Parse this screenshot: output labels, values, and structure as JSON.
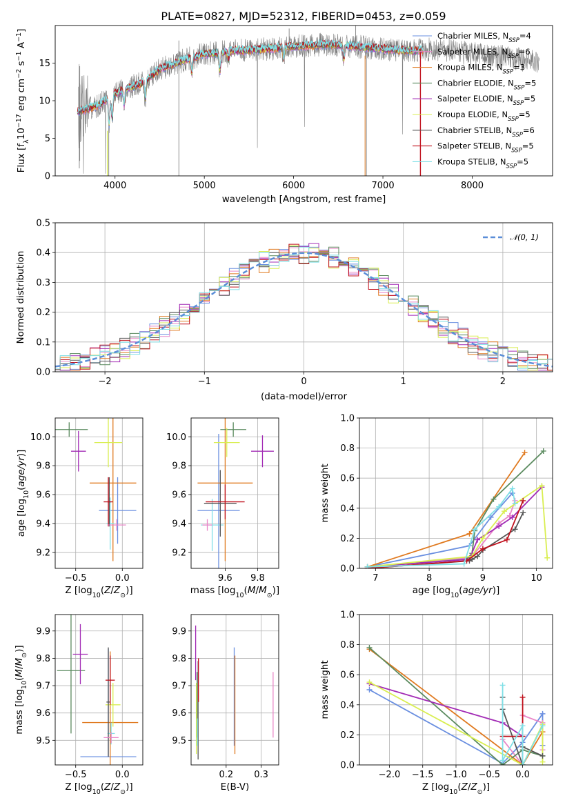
{
  "figure": {
    "title": "PLATE=0827, MJD=52312, FIBERID=0453, z=0.059"
  },
  "models": [
    {
      "name": "Chabrier MILES, N_SSP=4",
      "color": "#6a8fe0"
    },
    {
      "name": "Salpeter MILES, N_SSP=6",
      "color": "#e986c8"
    },
    {
      "name": "Kroupa MILES, N_SSP=3",
      "color": "#e07a20"
    },
    {
      "name": "Chabrier ELODIE, N_SSP=5",
      "color": "#5a8a5e"
    },
    {
      "name": "Salpeter ELODIE, N_SSP=5",
      "color": "#a22bb5"
    },
    {
      "name": "Kroupa ELODIE, N_SSP=5",
      "color": "#d9ee50"
    },
    {
      "name": "Chabrier STELIB, N_SSP=6",
      "color": "#555555"
    },
    {
      "name": "Salpeter STELIB, N_SSP=5",
      "color": "#c0101c"
    },
    {
      "name": "Kroupa STELIB, N_SSP=5",
      "color": "#7fdfe6"
    }
  ],
  "chart_data": [
    {
      "id": "spectrum",
      "type": "line",
      "xlabel": "wavelength [Angstrom, rest frame]",
      "ylabel": "Flux [f_λ10^-17 erg cm^-2 s^-1 A^-1]",
      "xlim": [
        3330,
        8900
      ],
      "ylim": [
        0,
        20
      ],
      "xticks": [
        4000,
        5000,
        6000,
        7000,
        8000
      ],
      "yticks": [
        0,
        5,
        10,
        15
      ],
      "data_color": "#808080",
      "legend_position": "right",
      "continuum_nodes": [
        [
          3600,
          8.6
        ],
        [
          3800,
          9.3
        ],
        [
          3950,
          10.6
        ],
        [
          4100,
          11.5
        ],
        [
          4300,
          12.3
        ],
        [
          4500,
          14.2
        ],
        [
          4800,
          15.5
        ],
        [
          5000,
          16.2
        ],
        [
          5300,
          16.6
        ],
        [
          5600,
          16.8
        ],
        [
          6000,
          17.2
        ],
        [
          6400,
          17.5
        ],
        [
          6700,
          17.2
        ],
        [
          7000,
          16.9
        ],
        [
          7300,
          16.6
        ],
        [
          7600,
          16.9
        ],
        [
          8000,
          16.2
        ],
        [
          8400,
          15.8
        ],
        [
          8700,
          15.2
        ]
      ],
      "model_range": [
        3580,
        7450
      ]
    },
    {
      "id": "residual_histogram",
      "type": "line",
      "xlabel": "(data-model)/error",
      "ylabel": "Normed distribution",
      "xlim": [
        -2.5,
        2.5
      ],
      "ylim": [
        0,
        0.5
      ],
      "xticks": [
        -2,
        -1,
        0,
        1,
        2
      ],
      "yticks": [
        0.0,
        0.1,
        0.2,
        0.3,
        0.4,
        0.5
      ],
      "gaussian_label": "𝒩(0, 1)",
      "gaussian_color": "#5b8ed8",
      "legend_position": "upper right",
      "bin_width": 0.1
    },
    {
      "id": "age_vs_Z",
      "type": "scatter",
      "xlabel": "Z [log10(Z/Z⊙)]",
      "ylabel": "age  [log10(age/yr)]",
      "xlim": [
        -0.72,
        0.22
      ],
      "ylim": [
        9.09,
        10.13
      ],
      "xticks": [
        -0.5,
        0.0
      ],
      "yticks": [
        9.2,
        9.4,
        9.6,
        9.8,
        10.0
      ],
      "errorbars": [
        {
          "model": 0,
          "x": -0.05,
          "xerr": 0.2,
          "y": 9.49,
          "yerr": 0.23
        },
        {
          "model": 2,
          "x": -0.1,
          "xerr": 0.25,
          "y": 9.68,
          "yerr": 0.54
        },
        {
          "model": 3,
          "x": -0.57,
          "xerr": 0.2,
          "y": 10.05,
          "yerr": 0.05
        },
        {
          "model": 4,
          "x": -0.47,
          "xerr": 0.08,
          "y": 9.9,
          "yerr": 0.14
        },
        {
          "model": 5,
          "x": -0.15,
          "xerr": 0.15,
          "y": 9.96,
          "yerr": 0.17
        },
        {
          "model": 8,
          "x": -0.13,
          "xerr": 0.04,
          "y": 9.4,
          "yerr": 0.18
        },
        {
          "model": 6,
          "x": -0.14,
          "xerr": 0.02,
          "y": 9.55,
          "yerr": 0.17
        },
        {
          "model": 7,
          "x": -0.15,
          "xerr": 0.05,
          "y": 9.55,
          "yerr": 0.17
        },
        {
          "model": 1,
          "x": -0.06,
          "xerr": 0.1,
          "y": 9.39,
          "yerr": 0.04
        }
      ]
    },
    {
      "id": "age_vs_mass",
      "type": "scatter",
      "xlabel": "mass [log10(M/M⊙)]",
      "ylabel": "",
      "xlim": [
        9.39,
        9.93
      ],
      "ylim": [
        9.09,
        10.13
      ],
      "xticks": [
        9.6,
        9.8
      ],
      "yticks": [
        9.2,
        9.4,
        9.6,
        9.8,
        10.0
      ],
      "errorbars": [
        {
          "model": 0,
          "x": 9.56,
          "xerr": 0.13,
          "y": 9.49,
          "yerr": 0.53
        },
        {
          "model": 2,
          "x": 9.6,
          "xerr": 0.17,
          "y": 9.68,
          "yerr": 0.54
        },
        {
          "model": 3,
          "x": 9.65,
          "xerr": 0.08,
          "y": 10.05,
          "yerr": 0.05
        },
        {
          "model": 4,
          "x": 9.83,
          "xerr": 0.07,
          "y": 9.9,
          "yerr": 0.11
        },
        {
          "model": 5,
          "x": 9.61,
          "xerr": 0.08,
          "y": 9.96,
          "yerr": 0.1
        },
        {
          "model": 8,
          "x": 9.52,
          "xerr": 0.07,
          "y": 9.39,
          "yerr": 0.18
        },
        {
          "model": 6,
          "x": 9.57,
          "xerr": 0.1,
          "y": 9.54,
          "yerr": 0.23
        },
        {
          "model": 7,
          "x": 9.6,
          "xerr": 0.12,
          "y": 9.55,
          "yerr": 0.12
        },
        {
          "model": 1,
          "x": 9.49,
          "xerr": 0.03,
          "y": 9.39,
          "yerr": 0.04
        }
      ]
    },
    {
      "id": "massweight_vs_age",
      "type": "line",
      "xlabel": "age  [log10(age/yr)]",
      "ylabel": "mass weight",
      "xlim": [
        6.7,
        10.3
      ],
      "ylim": [
        0,
        1
      ],
      "xticks": [
        7,
        8,
        9,
        10
      ],
      "yticks": [
        0.0,
        0.2,
        0.4,
        0.6,
        0.8,
        1.0
      ],
      "series": [
        {
          "model": 0,
          "x": [
            6.85,
            8.75,
            9.15,
            9.55
          ],
          "y": [
            0.01,
            0.15,
            0.34,
            0.5
          ]
        },
        {
          "model": 1,
          "x": [
            6.85,
            8.75,
            8.85,
            9.3,
            9.5,
            9.6
          ],
          "y": [
            0.01,
            0.07,
            0.1,
            0.3,
            0.35,
            0.45
          ]
        },
        {
          "model": 2,
          "x": [
            6.85,
            8.75,
            9.78
          ],
          "y": [
            0.01,
            0.23,
            0.77
          ]
        },
        {
          "model": 3,
          "x": [
            6.85,
            8.7,
            8.8,
            8.85,
            9.2,
            10.13
          ],
          "y": [
            0.01,
            0.06,
            0.1,
            0.25,
            0.46,
            0.78
          ]
        },
        {
          "model": 4,
          "x": [
            6.85,
            8.75,
            8.9,
            9.3,
            9.55,
            10.1
          ],
          "y": [
            0.01,
            0.06,
            0.19,
            0.28,
            0.34,
            0.54
          ]
        },
        {
          "model": 5,
          "x": [
            6.85,
            8.8,
            9.0,
            9.4,
            10.1,
            10.2
          ],
          "y": [
            0.01,
            0.08,
            0.2,
            0.38,
            0.55,
            0.07
          ]
        },
        {
          "model": 6,
          "x": [
            6.85,
            8.75,
            8.8,
            8.9,
            9.0,
            9.6,
            9.75
          ],
          "y": [
            0.0,
            0.05,
            0.06,
            0.08,
            0.12,
            0.26,
            0.37
          ]
        },
        {
          "model": 7,
          "x": [
            6.85,
            8.7,
            9.0,
            9.45,
            9.75
          ],
          "y": [
            0.0,
            0.05,
            0.13,
            0.19,
            0.45
          ]
        },
        {
          "model": 8,
          "x": [
            6.85,
            8.65,
            8.85,
            9.3,
            9.55,
            9.6
          ],
          "y": [
            0.01,
            0.03,
            0.26,
            0.41,
            0.53,
            0.43
          ]
        }
      ]
    },
    {
      "id": "mass_vs_Z",
      "type": "scatter",
      "xlabel": "Z [log10(Z/Z⊙)]",
      "ylabel": "mass [log10(M/M⊙)]",
      "xlim": [
        -0.72,
        0.22
      ],
      "ylim": [
        9.41,
        9.96
      ],
      "xticks": [
        -0.5,
        0.0
      ],
      "yticks": [
        9.5,
        9.6,
        9.7,
        9.8,
        9.9
      ],
      "errorbars": [
        {
          "model": 0,
          "x": -0.15,
          "xerr": 0.3,
          "y": 9.44,
          "yerr": 0.0,
          "yerr_up": 0.395
        },
        {
          "model": 2,
          "x": -0.13,
          "xerr": 0.3,
          "y": 9.565,
          "yerr": 0.26
        },
        {
          "model": 3,
          "x": -0.55,
          "xerr": 0.15,
          "y": 9.755,
          "yerr": 0.23
        },
        {
          "model": 4,
          "x": -0.45,
          "xerr": 0.08,
          "y": 9.815,
          "yerr": 0.11
        },
        {
          "model": 5,
          "x": -0.1,
          "xerr": 0.08,
          "y": 9.63,
          "yerr": 0.08
        },
        {
          "model": 8,
          "x": -0.12,
          "xerr": 0.04,
          "y": 9.525,
          "yerr": 0.04
        },
        {
          "model": 6,
          "x": -0.15,
          "xerr": 0.02,
          "y": 9.64,
          "yerr": 0.2
        },
        {
          "model": 7,
          "x": -0.13,
          "xerr": 0.05,
          "y": 9.72,
          "yerr": 0.09
        },
        {
          "model": 1,
          "x": -0.12,
          "xerr": 0.08,
          "y": 9.51,
          "yerr": 0.02
        }
      ]
    },
    {
      "id": "mass_vs_EBV",
      "type": "scatter",
      "xlabel": "E(B-V)",
      "ylabel": "",
      "xlim": [
        0.1,
        0.35
      ],
      "ylim": [
        9.41,
        9.96
      ],
      "xticks": [
        0.2,
        0.3
      ],
      "yticks": [
        9.5,
        9.6,
        9.7,
        9.8,
        9.9
      ],
      "errorbars": [
        {
          "model": 4,
          "x": 0.113,
          "y": 9.82,
          "yerr": 0.1
        },
        {
          "model": 3,
          "x": 0.117,
          "y": 9.63,
          "yerr": 0.12
        },
        {
          "model": 6,
          "x": 0.12,
          "y": 9.61,
          "yerr": 0.18
        },
        {
          "model": 7,
          "x": 0.121,
          "y": 9.72,
          "yerr": 0.08
        },
        {
          "model": 5,
          "x": 0.115,
          "y": 9.58,
          "yerr": 0.13
        },
        {
          "model": 8,
          "x": 0.118,
          "y": 9.53,
          "yerr": 0.05
        },
        {
          "model": 0,
          "x": 0.223,
          "y": 9.66,
          "yerr": 0.18
        },
        {
          "model": 2,
          "x": 0.225,
          "y": 9.63,
          "yerr": 0.18
        },
        {
          "model": 1,
          "x": 0.334,
          "y": 9.63,
          "yerr": 0.12
        }
      ]
    },
    {
      "id": "massweight_vs_Z",
      "type": "line",
      "xlabel": "Z [log10(Z/Z⊙)]",
      "ylabel": "mass weight",
      "xlim": [
        -2.45,
        0.45
      ],
      "ylim": [
        0,
        1
      ],
      "xticks": [
        -2.0,
        -1.5,
        -1.0,
        -0.5,
        0.0
      ],
      "yticks": [
        0.0,
        0.2,
        0.4,
        0.6,
        0.8,
        1.0
      ],
      "series": [
        {
          "model": 0,
          "x": [
            -2.3,
            -0.3,
            0.0,
            0.3,
            0.3
          ],
          "y": [
            0.5,
            0.01,
            0.15,
            0.34,
            0.13
          ]
        },
        {
          "model": 1,
          "x": [
            -0.3,
            0.0,
            0.0,
            0.3,
            0.3
          ],
          "y": [
            0.17,
            0.0,
            0.33,
            0.28,
            0.1
          ]
        },
        {
          "model": 2,
          "x": [
            -2.3,
            0.0,
            0.3
          ],
          "y": [
            0.77,
            0.0,
            0.22
          ]
        },
        {
          "model": 3,
          "x": [
            -2.3,
            -0.3,
            0.0,
            0.3
          ],
          "y": [
            0.78,
            0.0,
            0.1,
            0.06
          ]
        },
        {
          "model": 4,
          "x": [
            -2.3,
            -0.3,
            0.0,
            0.0
          ],
          "y": [
            0.54,
            0.28,
            0.19,
            0.0
          ]
        },
        {
          "model": 5,
          "x": [
            -2.3,
            0.0,
            0.3,
            0.3
          ],
          "y": [
            0.55,
            0.0,
            0.27,
            0.02
          ]
        },
        {
          "model": 6,
          "x": [
            -0.3,
            -0.3,
            0.0,
            0.0,
            0.3
          ],
          "y": [
            0.45,
            0.37,
            0.0,
            0.12,
            0.06
          ]
        },
        {
          "model": 7,
          "x": [
            -0.3,
            0.0,
            0.0
          ],
          "y": [
            0.19,
            0.19,
            0.45
          ]
        },
        {
          "model": 8,
          "x": [
            -0.3,
            -0.3,
            0.0,
            0.0,
            0.3
          ],
          "y": [
            0.53,
            0.03,
            0.26,
            0.0,
            0.26
          ]
        }
      ]
    }
  ]
}
